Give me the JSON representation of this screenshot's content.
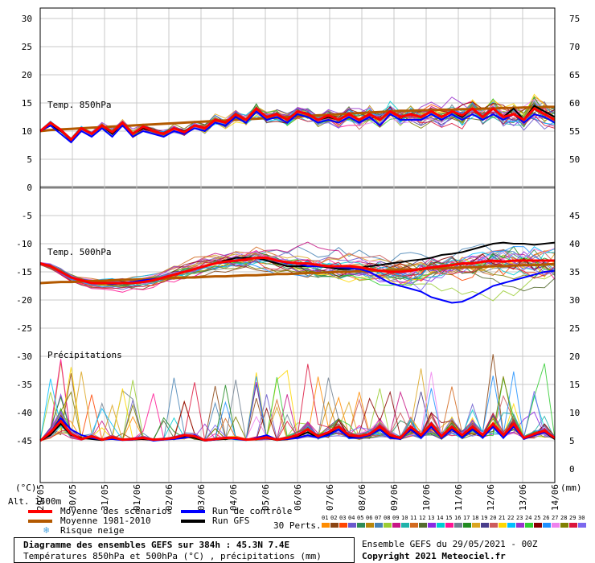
{
  "chart_data": {
    "type": "line",
    "x_ticks": [
      "30/05",
      "31/05",
      "01/06",
      "02/06",
      "03/06",
      "04/06",
      "05/06",
      "06/06",
      "07/06",
      "08/06",
      "09/06",
      "10/06",
      "11/06",
      "12/06",
      "13/06",
      "14/06"
    ],
    "first_tick": "29/05",
    "left_axis_label": "(°C)",
    "right_axis_label": "(mm)",
    "left_ticks": [
      "30",
      "25",
      "20",
      "15",
      "10",
      "5",
      "0",
      "-5",
      "-10",
      "-15",
      "-20",
      "-25",
      "-30",
      "-35",
      "-40",
      "-45"
    ],
    "right_ticks_top": [
      "75",
      "70",
      "65",
      "60",
      "55",
      "50"
    ],
    "right_ticks_bottom": [
      "45",
      "40",
      "35",
      "30",
      "25",
      "20",
      "15",
      "10",
      "5",
      "0"
    ],
    "panel_labels": {
      "t850": "Temp. 850hPa",
      "t500": "Temp. 500hPa",
      "precip": "Précipitations"
    },
    "altitude_label": "Alt. 1500m",
    "series": [
      {
        "name": "Moyenne des scénarios",
        "color": "#ff0000",
        "t850": [
          10,
          11.5,
          10.2,
          8.5,
          10.5,
          9.5,
          11,
          9.8,
          11.5,
          9.5,
          10.8,
          10,
          9.5,
          10.5,
          9.8,
          11,
          10.5,
          12,
          11.5,
          13,
          12,
          14,
          12.5,
          13,
          12,
          13.5,
          13,
          12,
          12.8,
          12,
          13,
          12,
          13,
          12,
          13.5,
          12.5,
          13,
          12.5,
          13.5,
          12.5,
          13.5,
          12.8,
          14,
          12.5,
          14,
          12.5,
          13,
          12,
          14,
          13,
          12
        ],
        "t500": [
          -13.5,
          -14,
          -15,
          -16,
          -16.5,
          -17,
          -17,
          -17,
          -17,
          -17,
          -16.8,
          -16.5,
          -16,
          -15.5,
          -15,
          -14.5,
          -14,
          -13.5,
          -13.2,
          -13,
          -12.8,
          -12.5,
          -12.5,
          -13,
          -13.3,
          -13.5,
          -13.5,
          -13.8,
          -14,
          -14,
          -14,
          -14.2,
          -14.5,
          -14.8,
          -15,
          -15,
          -14.8,
          -14.5,
          -14.2,
          -14,
          -13.8,
          -13.5,
          -13.5,
          -13.2,
          -13,
          -13.2,
          -13,
          -13,
          -13,
          -13,
          -13
        ],
        "precip": [
          0,
          1.5,
          3.5,
          1.2,
          0.3,
          0.8,
          0.2,
          0.6,
          0.2,
          0.3,
          0.5,
          0.2,
          0.3,
          0.5,
          1,
          0.8,
          0.1,
          0.3,
          0.5,
          0.5,
          0.2,
          0.3,
          0.6,
          0.2,
          0.5,
          1,
          2,
          0.8,
          1.5,
          2.5,
          1,
          0.8,
          1.2,
          2.5,
          1,
          0.5,
          2.5,
          1,
          3,
          0.8,
          2.5,
          1,
          2.5,
          1,
          3,
          1,
          3,
          0.5,
          1.2,
          1.8,
          0.5
        ]
      },
      {
        "name": "Moyenne 1981-2010",
        "color": "#b35900",
        "t850": [
          10,
          10.2,
          10.3,
          10.4,
          10.5,
          10.6,
          10.7,
          10.8,
          10.9,
          11,
          11.1,
          11.2,
          11.3,
          11.4,
          11.5,
          11.6,
          11.7,
          11.8,
          11.9,
          12,
          12.1,
          12.2,
          12.3,
          12.4,
          12.5,
          12.6,
          12.7,
          12.8,
          12.9,
          13,
          13.1,
          13.2,
          13.3,
          13.4,
          13.5,
          13.6,
          13.6,
          13.7,
          13.7,
          13.8,
          13.8,
          13.9,
          13.9,
          14,
          14,
          14.1,
          14.1,
          14.2,
          14.2,
          14.3,
          14.3
        ],
        "t500": [
          -17,
          -16.9,
          -16.8,
          -16.8,
          -16.7,
          -16.6,
          -16.6,
          -16.5,
          -16.4,
          -16.4,
          -16.3,
          -16.2,
          -16.2,
          -16.1,
          -16,
          -16,
          -15.9,
          -15.8,
          -15.8,
          -15.7,
          -15.6,
          -15.6,
          -15.5,
          -15.4,
          -15.4,
          -15.3,
          -15.2,
          -15.2,
          -15.1,
          -15,
          -15,
          -14.9,
          -14.8,
          -14.8,
          -14.7,
          -14.6,
          -14.6,
          -14.5,
          -14.4,
          -14.4,
          -14.3,
          -14.2,
          -14.2,
          -14.1,
          -14,
          -14,
          -13.9,
          -13.8,
          -13.8,
          -13.7,
          -13.6
        ]
      },
      {
        "name": "Run de contrôle",
        "color": "#0000ff",
        "t850": [
          10,
          11,
          9.5,
          8,
          10,
          9,
          10.5,
          9,
          11,
          9,
          10,
          9.5,
          9,
          10,
          9.5,
          10.5,
          10,
          11.5,
          11,
          12.5,
          11.5,
          13.5,
          12,
          12.5,
          11.5,
          13,
          12.5,
          11.5,
          12,
          11.5,
          12.5,
          11.5,
          12.5,
          11,
          13,
          12,
          12,
          12,
          13,
          12,
          13,
          12,
          13,
          12,
          13,
          12,
          13,
          11.5,
          13,
          12.5,
          11.5
        ],
        "t500": [
          -13.5,
          -14,
          -15,
          -16,
          -16.5,
          -17,
          -17,
          -17.2,
          -17,
          -16.8,
          -16.5,
          -16.3,
          -16,
          -15.5,
          -15,
          -14.5,
          -14,
          -13.5,
          -13.3,
          -13,
          -12.8,
          -12.5,
          -12.5,
          -13,
          -13.5,
          -13.5,
          -14,
          -14,
          -14,
          -14.2,
          -14.3,
          -14.5,
          -15,
          -16,
          -17,
          -17.5,
          -18,
          -18.5,
          -19.5,
          -20,
          -20.5,
          -20.3,
          -19.5,
          -18.5,
          -17.5,
          -17,
          -16.5,
          -16,
          -15.5,
          -15,
          -14.8
        ],
        "precip": [
          0,
          1.5,
          4,
          2,
          1,
          0.5,
          0.2,
          0.3,
          0.1,
          0.2,
          0.5,
          0,
          0.2,
          0.3,
          0.5,
          1,
          0,
          0.2,
          0.5,
          0.3,
          0.1,
          0.5,
          1,
          0.2,
          0.3,
          0.5,
          1,
          0.5,
          1,
          2,
          0.5,
          0.5,
          1,
          2,
          0.5,
          0.3,
          2,
          0.5,
          2.5,
          0.5,
          2,
          0.5,
          2,
          0.5,
          2.5,
          0.5,
          2.5,
          0.3,
          1,
          1.5,
          0.5
        ]
      },
      {
        "name": "Run GFS",
        "color": "#000000",
        "t850": [
          10,
          11,
          10,
          8.5,
          10.5,
          9.5,
          11,
          9.5,
          11.5,
          9.5,
          10.5,
          10,
          9.5,
          10.5,
          10,
          11,
          10.5,
          12,
          11.5,
          13,
          12,
          14,
          12.5,
          13,
          12,
          13.5,
          13,
          12,
          12.5,
          12,
          13,
          12,
          13,
          12,
          13.5,
          12.5,
          13,
          12.5,
          13.5,
          12.5,
          13.5,
          12.5,
          14,
          12.5,
          14,
          12.5,
          14,
          12,
          14.5,
          13.5,
          12.5
        ],
        "t500": [
          -13.5,
          -14,
          -15,
          -16,
          -16.5,
          -17,
          -17,
          -17,
          -17,
          -17,
          -16.8,
          -16.5,
          -16,
          -15.5,
          -15,
          -14.5,
          -14,
          -13.5,
          -13,
          -12.5,
          -12.5,
          -12.5,
          -13,
          -13.5,
          -14,
          -14,
          -14,
          -14,
          -14.2,
          -14.5,
          -14.5,
          -14.3,
          -14,
          -13.8,
          -13.5,
          -13.3,
          -13,
          -12.8,
          -12.5,
          -12,
          -11.8,
          -11.5,
          -11,
          -10.5,
          -10,
          -9.8,
          -10,
          -10,
          -10.2,
          -10,
          -9.8
        ],
        "precip": [
          0,
          1,
          3,
          1,
          0.5,
          0.3,
          0.1,
          0.5,
          0.2,
          0.2,
          0.3,
          0.1,
          0.2,
          0.5,
          0.8,
          0.5,
          0,
          0.2,
          0.3,
          0.5,
          0.2,
          0.3,
          0.5,
          0.1,
          0.3,
          0.8,
          1.5,
          0.5,
          1.2,
          2,
          0.8,
          0.6,
          1,
          2,
          0.8,
          0.3,
          2,
          0.8,
          2.5,
          0.5,
          2,
          0.8,
          2,
          0.8,
          2.5,
          0.8,
          2.5,
          0.5,
          1,
          1.5,
          0.3
        ]
      }
    ],
    "ensemble_members_count": 30,
    "ensemble_member_colors": [
      "#ff8c00",
      "#8b4513",
      "#ff4500",
      "#6a5acd",
      "#2e8b57",
      "#b8860b",
      "#4682b4",
      "#9acd32",
      "#c71585",
      "#20b2aa",
      "#d2691e",
      "#556b2f",
      "#8a2be2",
      "#00ced1",
      "#ff1493",
      "#708090",
      "#228b22",
      "#daa520",
      "#483d8b",
      "#cd5c5c",
      "#ffd700",
      "#00bfff",
      "#9932cc",
      "#32cd32",
      "#8b0000",
      "#1e90ff",
      "#ee82ee",
      "#808000",
      "#dc143c",
      "#7b68ee"
    ]
  },
  "legend": {
    "mean": "Moyenne des scénarios",
    "clim": "Moyenne 1981-2010",
    "snow": "Risque neige",
    "control": "Run de contrôle",
    "gfs": "Run GFS",
    "perts_label": "30 Perts.",
    "perts_numbers": [
      "01",
      "02",
      "03",
      "04",
      "05",
      "06",
      "07",
      "08",
      "09",
      "10",
      "11",
      "12",
      "13",
      "14",
      "15",
      "16",
      "17",
      "18",
      "19",
      "20",
      "21",
      "22",
      "23",
      "24",
      "25",
      "26",
      "27",
      "28",
      "29",
      "30"
    ],
    "colors": {
      "mean": "#ff0000",
      "clim": "#b35900",
      "control": "#0000ff",
      "gfs": "#000000",
      "snow": "#4aa3df"
    }
  },
  "footer": {
    "title": "Diagramme des ensembles GEFS sur 384h : 45.3N 7.4E",
    "subtitle": "Températures 850hPa et 500hPa (°C) , précipitations (mm)",
    "run_info": "Ensemble GEFS du 29/05/2021 - 00Z",
    "copyright": "Copyright 2021 Meteociel.fr"
  }
}
